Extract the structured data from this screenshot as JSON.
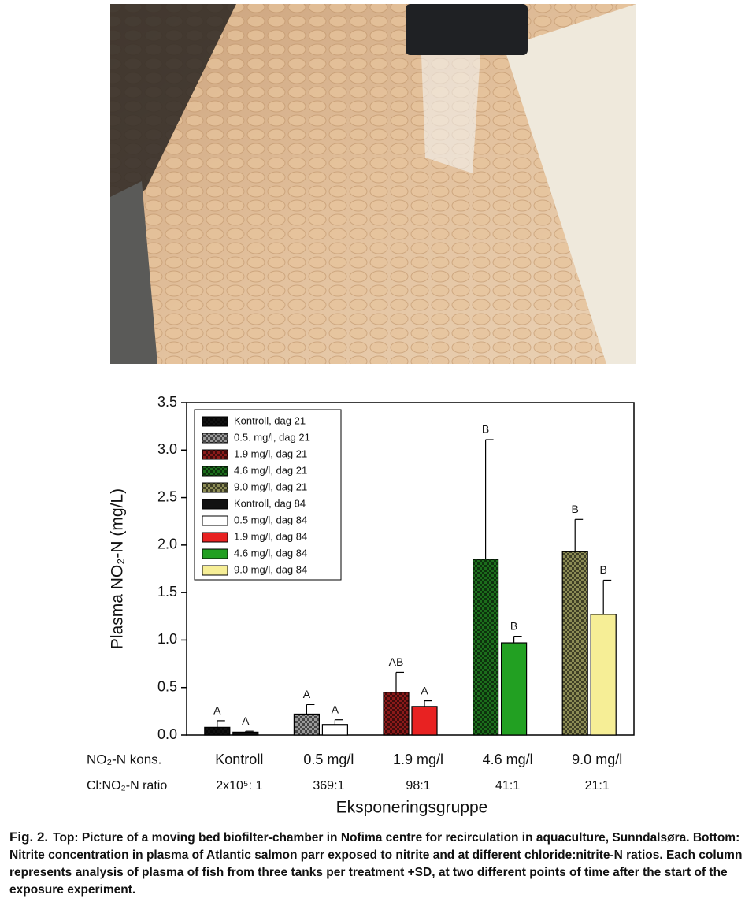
{
  "chart_data": {
    "type": "bar",
    "ylabel": "Plasma NO₂-N (mg/L)",
    "xlabel": "Eksponeringsgruppe",
    "kons_label": "NO₂-N kons.",
    "ratio_label": "Cl:NO₂-N ratio",
    "categories": [
      "Kontroll",
      "0.5 mg/l",
      "1.9 mg/l",
      "4.6 mg/l",
      "9.0 mg/l"
    ],
    "ratios": [
      "2x10⁵: 1",
      "369:1",
      "98:1",
      "41:1",
      "21:1"
    ],
    "ylim": [
      0,
      3.5
    ],
    "yticks": [
      {
        "value": 0,
        "label": "0.0"
      },
      0.5,
      {
        "value": 1,
        "label": "1.0"
      },
      1.5,
      {
        "value": 2,
        "label": "2.0"
      },
      2.5,
      {
        "value": 3,
        "label": "3.0"
      },
      3.5
    ],
    "series": [
      {
        "name": "Kontroll, dag 21",
        "color": "#111111",
        "pattern": "checker",
        "values": [
          0.08,
          null,
          null,
          null,
          null
        ],
        "errors": [
          0.07,
          null,
          null,
          null,
          null
        ],
        "letters": [
          "A",
          null,
          null,
          null,
          null
        ]
      },
      {
        "name": "0.5. mg/l, dag 21",
        "color": "#9a9a9a",
        "pattern": "checker",
        "values": [
          null,
          0.22,
          null,
          null,
          null
        ],
        "errors": [
          null,
          0.1,
          null,
          null,
          null
        ],
        "letters": [
          null,
          "A",
          null,
          null,
          null
        ]
      },
      {
        "name": "1.9 mg/l, dag 21",
        "color": "#8b1a1a",
        "pattern": "checker",
        "values": [
          null,
          null,
          0.45,
          null,
          null
        ],
        "errors": [
          null,
          null,
          0.21,
          null,
          null
        ],
        "letters": [
          null,
          null,
          "AB",
          null,
          null
        ]
      },
      {
        "name": "4.6 mg/l, dag 21",
        "color": "#1c6e1c",
        "pattern": "checker",
        "values": [
          null,
          null,
          null,
          1.85,
          null
        ],
        "errors": [
          null,
          null,
          null,
          1.26,
          null
        ],
        "letters": [
          null,
          null,
          null,
          "B",
          null
        ]
      },
      {
        "name": "9.0 mg/l, dag 21",
        "color": "#8c8c55",
        "pattern": "checker",
        "values": [
          null,
          null,
          null,
          null,
          1.93
        ],
        "errors": [
          null,
          null,
          null,
          null,
          0.34
        ],
        "letters": [
          null,
          null,
          null,
          null,
          "B"
        ]
      },
      {
        "name": "Kontroll, dag 84",
        "color": "#111111",
        "values": [
          0.03,
          null,
          null,
          null,
          null
        ],
        "errors": [
          0.01,
          null,
          null,
          null,
          null
        ],
        "letters": [
          "A",
          null,
          null,
          null,
          null
        ]
      },
      {
        "name": "0.5 mg/l, dag 84",
        "color": "#ffffff",
        "values": [
          null,
          0.11,
          null,
          null,
          null
        ],
        "errors": [
          null,
          0.05,
          null,
          null,
          null
        ],
        "letters": [
          null,
          "A",
          null,
          null,
          null
        ]
      },
      {
        "name": "1.9 mg/l, dag 84",
        "color": "#e82222",
        "values": [
          null,
          null,
          0.3,
          null,
          null
        ],
        "errors": [
          null,
          null,
          0.06,
          null,
          null
        ],
        "letters": [
          null,
          null,
          "A",
          null,
          null
        ]
      },
      {
        "name": "4.6 mg/l, dag 84",
        "color": "#22a022",
        "values": [
          null,
          null,
          null,
          0.97,
          null
        ],
        "errors": [
          null,
          null,
          null,
          0.07,
          null
        ],
        "letters": [
          null,
          null,
          null,
          "B",
          null
        ]
      },
      {
        "name": "9.0 mg/l, dag 84",
        "color": "#f6ee96",
        "values": [
          null,
          null,
          null,
          null,
          1.27
        ],
        "errors": [
          null,
          null,
          null,
          null,
          0.36
        ],
        "letters": [
          null,
          null,
          null,
          null,
          "B"
        ]
      }
    ]
  },
  "caption": {
    "label": "Fig. 2.",
    "text": "Top: Picture of a moving bed biofilter-chamber in Nofima centre for recirculation in aquaculture, Sunndalsøra.  Bottom: Nitrite concentration in plasma of Atlantic salmon parr exposed to nitrite and at different chloride:nitrite-N ratios.  Each column represents analysis of plasma of fish from three tanks per treatment +SD, at two different points of time after the start of the exposure experiment."
  }
}
